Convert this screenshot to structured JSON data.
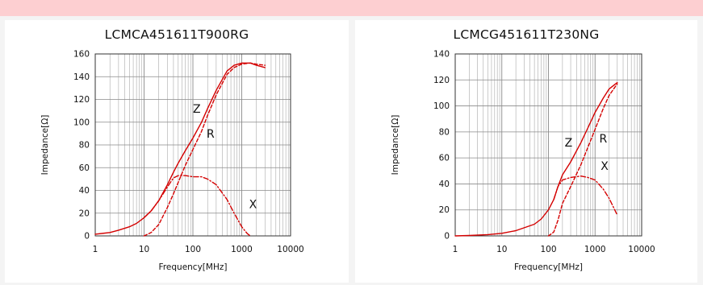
{
  "chart_data": [
    {
      "type": "line",
      "title": "LCMCA451611T900RG",
      "xlabel": "Frequency[MHz]",
      "ylabel": "Impedance[Ω]",
      "x_scale": "log",
      "xlim": [
        1,
        10000
      ],
      "ylim": [
        0,
        160
      ],
      "x_ticks": [
        "1",
        "10",
        "100",
        "1000",
        "10000"
      ],
      "y_ticks": [
        "0",
        "20",
        "40",
        "60",
        "80",
        "100",
        "120",
        "140",
        "160"
      ],
      "grid": true,
      "curve_labels": [
        {
          "text": "Z",
          "x": 120,
          "y": 112
        },
        {
          "text": "R",
          "x": 230,
          "y": 90
        },
        {
          "text": "X",
          "x": 1700,
          "y": 28
        }
      ],
      "series": [
        {
          "name": "Z",
          "style": "solid",
          "color": "#d40000",
          "x": [
            1,
            2,
            3,
            5,
            7,
            10,
            14,
            20,
            30,
            40,
            50,
            70,
            100,
            150,
            200,
            300,
            500,
            700,
            1000,
            1500,
            2000,
            3000
          ],
          "y": [
            1.5,
            3,
            5,
            8,
            11,
            16,
            22,
            31,
            45,
            56,
            64,
            75,
            86,
            100,
            112,
            128,
            145,
            150,
            152,
            152,
            150,
            148
          ]
        },
        {
          "name": "R",
          "style": "dashed",
          "color": "#d40000",
          "x": [
            10,
            14,
            20,
            30,
            40,
            50,
            70,
            100,
            150,
            200,
            300,
            500,
            700,
            1000,
            1500,
            2000,
            3000
          ],
          "y": [
            0,
            3,
            10,
            25,
            37,
            47,
            62,
            76,
            92,
            106,
            124,
            142,
            148,
            151,
            152,
            151,
            150
          ]
        },
        {
          "name": "X",
          "style": "dashdot",
          "color": "#d40000",
          "x": [
            10,
            14,
            20,
            30,
            40,
            50,
            70,
            100,
            150,
            200,
            300,
            500,
            700,
            1000,
            1300,
            1500
          ],
          "y": [
            16,
            22,
            31,
            43,
            51,
            53,
            53,
            52,
            52,
            50,
            45,
            32,
            20,
            8,
            2,
            0
          ]
        }
      ]
    },
    {
      "type": "line",
      "title": "LCMCG451611T230NG",
      "xlabel": "Frequency[MHz]",
      "ylabel": "Impedance[Ω]",
      "x_scale": "log",
      "xlim": [
        1,
        10000
      ],
      "ylim": [
        0,
        140
      ],
      "x_ticks": [
        "1",
        "10",
        "100",
        "1000",
        "10000"
      ],
      "y_ticks": [
        "0",
        "20",
        "40",
        "60",
        "80",
        "100",
        "120",
        "140"
      ],
      "grid": true,
      "curve_labels": [
        {
          "text": "Z",
          "x": 270,
          "y": 72
        },
        {
          "text": "R",
          "x": 1500,
          "y": 75
        },
        {
          "text": "X",
          "x": 1600,
          "y": 54
        }
      ],
      "series": [
        {
          "name": "Z",
          "style": "solid",
          "color": "#d40000",
          "x": [
            1,
            2,
            5,
            10,
            20,
            50,
            70,
            100,
            130,
            160,
            200,
            300,
            500,
            700,
            1000,
            1500,
            2000,
            3000
          ],
          "y": [
            0,
            0.3,
            1,
            2,
            4,
            9,
            13,
            20,
            28,
            38,
            47,
            57,
            72,
            83,
            95,
            106,
            113,
            118
          ]
        },
        {
          "name": "R",
          "style": "dashed",
          "color": "#d40000",
          "x": [
            100,
            130,
            160,
            200,
            300,
            500,
            700,
            1000,
            1500,
            2000,
            3000
          ],
          "y": [
            0,
            3,
            12,
            25,
            38,
            55,
            68,
            82,
            98,
            108,
            117
          ]
        },
        {
          "name": "X",
          "style": "dashdot",
          "color": "#d40000",
          "x": [
            130,
            160,
            200,
            300,
            500,
            700,
            1000,
            1500,
            2000,
            3000
          ],
          "y": [
            28,
            38,
            43,
            45,
            46,
            45,
            43,
            36,
            29,
            16
          ]
        }
      ]
    }
  ]
}
